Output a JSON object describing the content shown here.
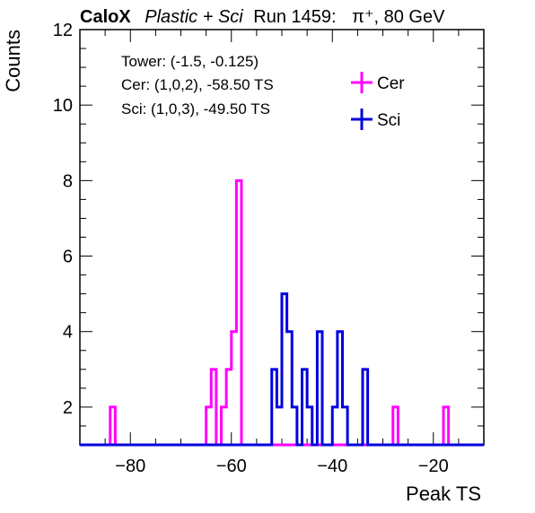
{
  "header": {
    "brand": "CaloX",
    "subtitle": "Plastic + Sci",
    "run": "Run 1459:",
    "particle": "π⁺, 80 GeV"
  },
  "info": {
    "tower": "Tower: (-1.5, -0.125)",
    "cer": "Cer: (1,0,2), -58.50 TS",
    "sci": "Sci: (1,0,3), -49.50 TS"
  },
  "chart_data": {
    "type": "histogram",
    "xlabel": "Peak TS",
    "ylabel": "Counts",
    "xlim": [
      -90,
      -10
    ],
    "ylim": [
      1,
      12
    ],
    "bin_width": 1,
    "x_ticks": [
      -80,
      -60,
      -40,
      -20
    ],
    "x_tick_labels": [
      "−80",
      "−60",
      "−40",
      "−20"
    ],
    "y_ticks": [
      2,
      4,
      6,
      8,
      10,
      12
    ],
    "y_tick_labels": [
      "2",
      "4",
      "6",
      "8",
      "10",
      "12"
    ],
    "legend_position": "top-right",
    "series": [
      {
        "name": "Cer",
        "color": "#ff00ff",
        "bins": [
          {
            "x": -84,
            "count": 2
          },
          {
            "x": -65,
            "count": 2
          },
          {
            "x": -64,
            "count": 3
          },
          {
            "x": -62,
            "count": 2
          },
          {
            "x": -61,
            "count": 3
          },
          {
            "x": -60,
            "count": 4
          },
          {
            "x": -59,
            "count": 8
          },
          {
            "x": -50,
            "count": 1
          },
          {
            "x": -33,
            "count": 1
          },
          {
            "x": -28,
            "count": 2
          },
          {
            "x": -18,
            "count": 2
          }
        ]
      },
      {
        "name": "Sci",
        "color": "#0000dd",
        "bins": [
          {
            "x": -52,
            "count": 3
          },
          {
            "x": -51,
            "count": 2
          },
          {
            "x": -50,
            "count": 5
          },
          {
            "x": -49,
            "count": 4
          },
          {
            "x": -48,
            "count": 2
          },
          {
            "x": -47,
            "count": 1
          },
          {
            "x": -46,
            "count": 3
          },
          {
            "x": -45,
            "count": 2
          },
          {
            "x": -43,
            "count": 4
          },
          {
            "x": -42,
            "count": 1
          },
          {
            "x": -40,
            "count": 2
          },
          {
            "x": -39,
            "count": 4
          },
          {
            "x": -38,
            "count": 2
          },
          {
            "x": -36,
            "count": 1
          },
          {
            "x": -34,
            "count": 3
          }
        ]
      }
    ]
  }
}
